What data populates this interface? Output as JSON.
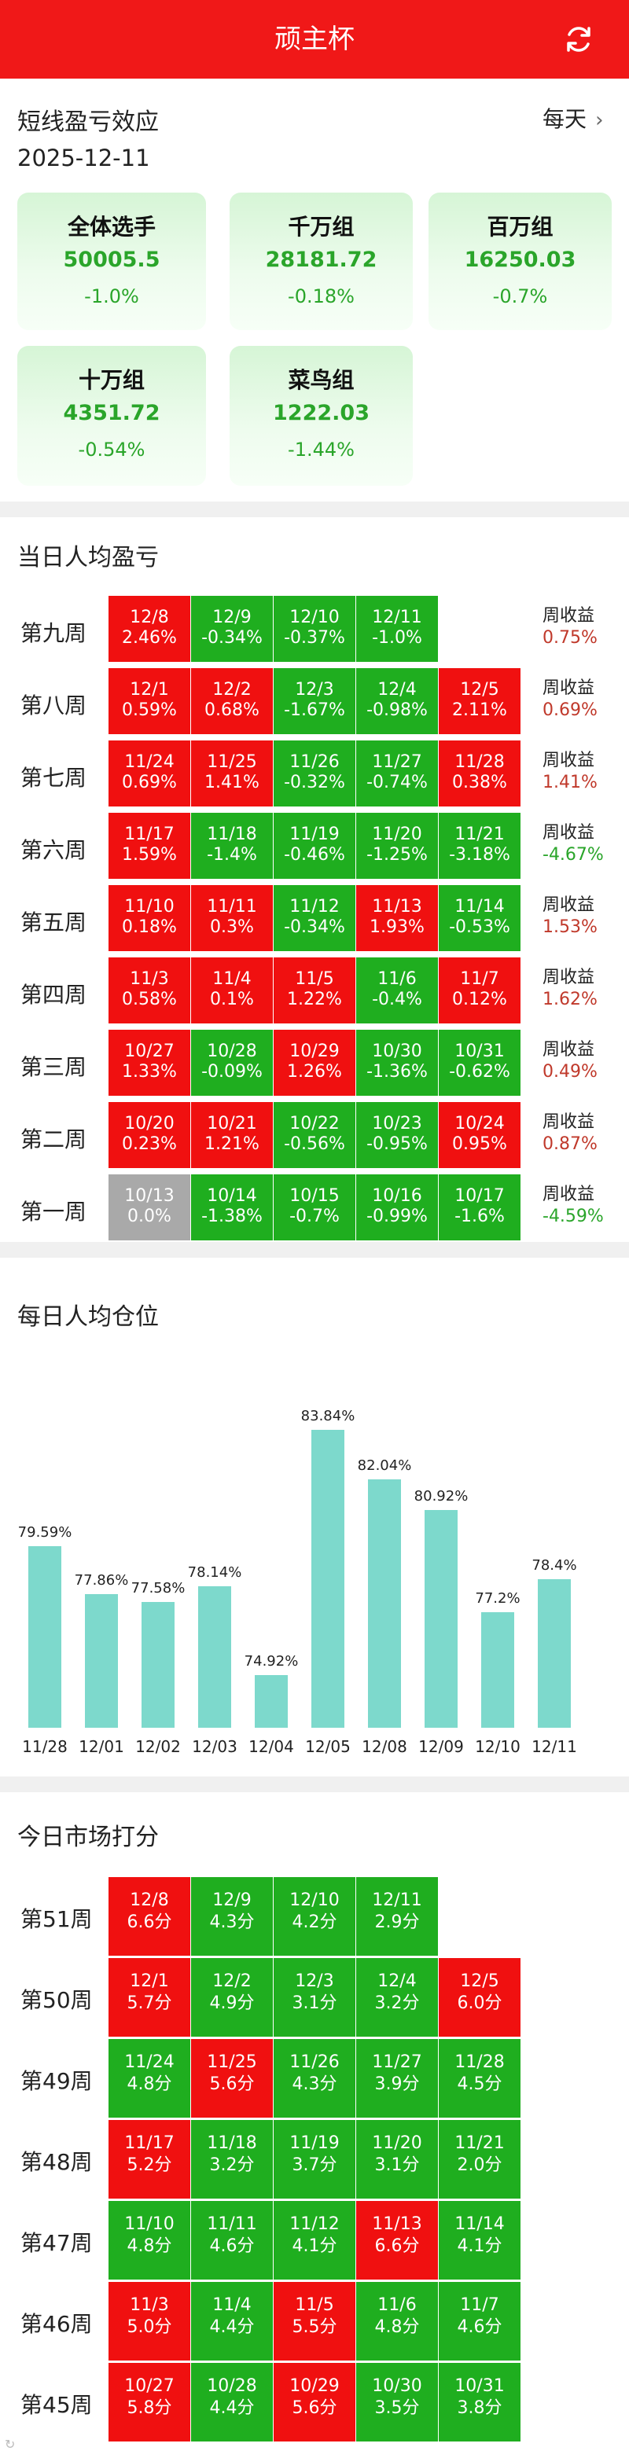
{
  "header": {
    "title": "顽主杯",
    "refresh_icon": "refresh-icon"
  },
  "summary": {
    "title": "短线盈亏效应",
    "date": "2025-12-11",
    "period_link": "每天",
    "groups": [
      {
        "name": "全体选手",
        "value": "50005.5",
        "change": "-1.0%"
      },
      {
        "name": "千万组",
        "value": "28181.72",
        "change": "-0.18%"
      },
      {
        "name": "百万组",
        "value": "16250.03",
        "change": "-0.7%"
      },
      {
        "name": "十万组",
        "value": "4351.72",
        "change": "-0.54%"
      },
      {
        "name": "菜鸟组",
        "value": "1222.03",
        "change": "-1.44%"
      }
    ]
  },
  "daily_pnl": {
    "title": "当日人均盈亏",
    "weekly_label": "周收益",
    "colors": {
      "up": "#f01010",
      "down": "#1fae1f",
      "flat": "#a9a9a9"
    },
    "weeks": [
      {
        "label": "第九周",
        "weekly": "0.75%",
        "weekly_dir": "up",
        "days": [
          {
            "date": "12/8",
            "value": "2.46%",
            "dir": "up"
          },
          {
            "date": "12/9",
            "value": "-0.34%",
            "dir": "down"
          },
          {
            "date": "12/10",
            "value": "-0.37%",
            "dir": "down"
          },
          {
            "date": "12/11",
            "value": "-1.0%",
            "dir": "down"
          }
        ]
      },
      {
        "label": "第八周",
        "weekly": "0.69%",
        "weekly_dir": "up",
        "days": [
          {
            "date": "12/1",
            "value": "0.59%",
            "dir": "up"
          },
          {
            "date": "12/2",
            "value": "0.68%",
            "dir": "up"
          },
          {
            "date": "12/3",
            "value": "-1.67%",
            "dir": "down"
          },
          {
            "date": "12/4",
            "value": "-0.98%",
            "dir": "down"
          },
          {
            "date": "12/5",
            "value": "2.11%",
            "dir": "up"
          }
        ]
      },
      {
        "label": "第七周",
        "weekly": "1.41%",
        "weekly_dir": "up",
        "days": [
          {
            "date": "11/24",
            "value": "0.69%",
            "dir": "up"
          },
          {
            "date": "11/25",
            "value": "1.41%",
            "dir": "up"
          },
          {
            "date": "11/26",
            "value": "-0.32%",
            "dir": "down"
          },
          {
            "date": "11/27",
            "value": "-0.74%",
            "dir": "down"
          },
          {
            "date": "11/28",
            "value": "0.38%",
            "dir": "up"
          }
        ]
      },
      {
        "label": "第六周",
        "weekly": "-4.67%",
        "weekly_dir": "down",
        "days": [
          {
            "date": "11/17",
            "value": "1.59%",
            "dir": "up"
          },
          {
            "date": "11/18",
            "value": "-1.4%",
            "dir": "down"
          },
          {
            "date": "11/19",
            "value": "-0.46%",
            "dir": "down"
          },
          {
            "date": "11/20",
            "value": "-1.25%",
            "dir": "down"
          },
          {
            "date": "11/21",
            "value": "-3.18%",
            "dir": "down"
          }
        ]
      },
      {
        "label": "第五周",
        "weekly": "1.53%",
        "weekly_dir": "up",
        "days": [
          {
            "date": "11/10",
            "value": "0.18%",
            "dir": "up"
          },
          {
            "date": "11/11",
            "value": "0.3%",
            "dir": "up"
          },
          {
            "date": "11/12",
            "value": "-0.34%",
            "dir": "down"
          },
          {
            "date": "11/13",
            "value": "1.93%",
            "dir": "up"
          },
          {
            "date": "11/14",
            "value": "-0.53%",
            "dir": "down"
          }
        ]
      },
      {
        "label": "第四周",
        "weekly": "1.62%",
        "weekly_dir": "up",
        "days": [
          {
            "date": "11/3",
            "value": "0.58%",
            "dir": "up"
          },
          {
            "date": "11/4",
            "value": "0.1%",
            "dir": "up"
          },
          {
            "date": "11/5",
            "value": "1.22%",
            "dir": "up"
          },
          {
            "date": "11/6",
            "value": "-0.4%",
            "dir": "down"
          },
          {
            "date": "11/7",
            "value": "0.12%",
            "dir": "up"
          }
        ]
      },
      {
        "label": "第三周",
        "weekly": "0.49%",
        "weekly_dir": "up",
        "days": [
          {
            "date": "10/27",
            "value": "1.33%",
            "dir": "up"
          },
          {
            "date": "10/28",
            "value": "-0.09%",
            "dir": "down"
          },
          {
            "date": "10/29",
            "value": "1.26%",
            "dir": "up"
          },
          {
            "date": "10/30",
            "value": "-1.36%",
            "dir": "down"
          },
          {
            "date": "10/31",
            "value": "-0.62%",
            "dir": "down"
          }
        ]
      },
      {
        "label": "第二周",
        "weekly": "0.87%",
        "weekly_dir": "up",
        "days": [
          {
            "date": "10/20",
            "value": "0.23%",
            "dir": "up"
          },
          {
            "date": "10/21",
            "value": "1.21%",
            "dir": "up"
          },
          {
            "date": "10/22",
            "value": "-0.56%",
            "dir": "down"
          },
          {
            "date": "10/23",
            "value": "-0.95%",
            "dir": "down"
          },
          {
            "date": "10/24",
            "value": "0.95%",
            "dir": "up"
          }
        ]
      },
      {
        "label": "第一周",
        "weekly": "-4.59%",
        "weekly_dir": "down",
        "days": [
          {
            "date": "10/13",
            "value": "0.0%",
            "dir": "flat"
          },
          {
            "date": "10/14",
            "value": "-1.38%",
            "dir": "down"
          },
          {
            "date": "10/15",
            "value": "-0.7%",
            "dir": "down"
          },
          {
            "date": "10/16",
            "value": "-0.99%",
            "dir": "down"
          },
          {
            "date": "10/17",
            "value": "-1.6%",
            "dir": "down"
          }
        ]
      }
    ]
  },
  "position": {
    "title": "每日人均仓位",
    "chart_data": {
      "type": "bar",
      "categories": [
        "11/28",
        "12/01",
        "12/02",
        "12/03",
        "12/04",
        "12/05",
        "12/08",
        "12/09",
        "12/10",
        "12/11"
      ],
      "values": [
        79.59,
        77.86,
        77.58,
        78.14,
        74.92,
        83.84,
        82.04,
        80.92,
        77.2,
        78.4
      ],
      "labels": [
        "79.59%",
        "77.86%",
        "77.58%",
        "78.14%",
        "74.92%",
        "83.84%",
        "82.04%",
        "80.92%",
        "77.2%",
        "78.4%"
      ],
      "ylim": [
        73,
        85
      ],
      "color": "#7dd9cc"
    }
  },
  "market_score": {
    "title": "今日市场打分",
    "weeks": [
      {
        "label": "第51周",
        "days": [
          {
            "date": "12/8",
            "score": "6.6分",
            "dir": "up"
          },
          {
            "date": "12/9",
            "score": "4.3分",
            "dir": "down"
          },
          {
            "date": "12/10",
            "score": "4.2分",
            "dir": "down"
          },
          {
            "date": "12/11",
            "score": "2.9分",
            "dir": "down"
          }
        ]
      },
      {
        "label": "第50周",
        "days": [
          {
            "date": "12/1",
            "score": "5.7分",
            "dir": "up"
          },
          {
            "date": "12/2",
            "score": "4.9分",
            "dir": "down"
          },
          {
            "date": "12/3",
            "score": "3.1分",
            "dir": "down"
          },
          {
            "date": "12/4",
            "score": "3.2分",
            "dir": "down"
          },
          {
            "date": "12/5",
            "score": "6.0分",
            "dir": "up"
          }
        ]
      },
      {
        "label": "第49周",
        "days": [
          {
            "date": "11/24",
            "score": "4.8分",
            "dir": "down"
          },
          {
            "date": "11/25",
            "score": "5.6分",
            "dir": "up"
          },
          {
            "date": "11/26",
            "score": "4.3分",
            "dir": "down"
          },
          {
            "date": "11/27",
            "score": "3.9分",
            "dir": "down"
          },
          {
            "date": "11/28",
            "score": "4.5分",
            "dir": "down"
          }
        ]
      },
      {
        "label": "第48周",
        "days": [
          {
            "date": "11/17",
            "score": "5.2分",
            "dir": "up"
          },
          {
            "date": "11/18",
            "score": "3.2分",
            "dir": "down"
          },
          {
            "date": "11/19",
            "score": "3.7分",
            "dir": "down"
          },
          {
            "date": "11/20",
            "score": "3.1分",
            "dir": "down"
          },
          {
            "date": "11/21",
            "score": "2.0分",
            "dir": "down"
          }
        ]
      },
      {
        "label": "第47周",
        "days": [
          {
            "date": "11/10",
            "score": "4.8分",
            "dir": "down"
          },
          {
            "date": "11/11",
            "score": "4.6分",
            "dir": "down"
          },
          {
            "date": "11/12",
            "score": "4.1分",
            "dir": "down"
          },
          {
            "date": "11/13",
            "score": "6.6分",
            "dir": "up"
          },
          {
            "date": "11/14",
            "score": "4.1分",
            "dir": "down"
          }
        ]
      },
      {
        "label": "第46周",
        "days": [
          {
            "date": "11/3",
            "score": "5.0分",
            "dir": "up"
          },
          {
            "date": "11/4",
            "score": "4.4分",
            "dir": "down"
          },
          {
            "date": "11/5",
            "score": "5.5分",
            "dir": "up"
          },
          {
            "date": "11/6",
            "score": "4.8分",
            "dir": "down"
          },
          {
            "date": "11/7",
            "score": "4.6分",
            "dir": "down"
          }
        ]
      },
      {
        "label": "第45周",
        "days": [
          {
            "date": "10/27",
            "score": "5.8分",
            "dir": "up"
          },
          {
            "date": "10/28",
            "score": "4.4分",
            "dir": "down"
          },
          {
            "date": "10/29",
            "score": "5.6分",
            "dir": "up"
          },
          {
            "date": "10/30",
            "score": "3.5分",
            "dir": "down"
          },
          {
            "date": "10/31",
            "score": "3.8分",
            "dir": "down"
          }
        ]
      }
    ]
  }
}
